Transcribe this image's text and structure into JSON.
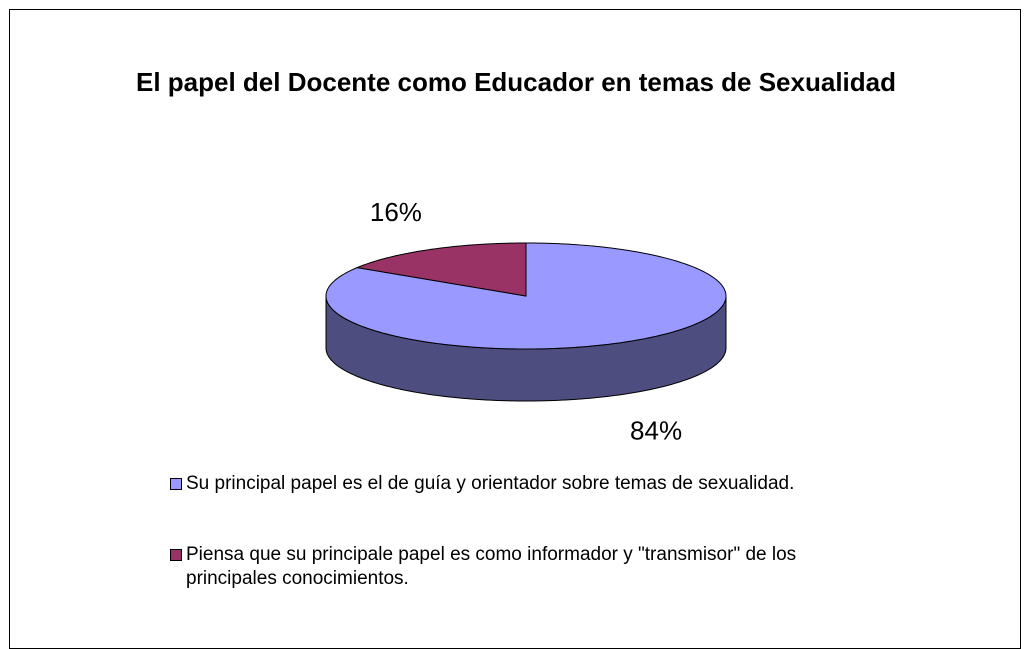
{
  "chart_data": {
    "type": "pie3d",
    "title": "El papel del Docente como Educador en temas de Sexualidad",
    "categories": [
      "Su principal papel es el de guía y orientador sobre temas de sexualidad.",
      "Piensa que su principale papel es como informador y \"transmisor\" de los principales conocimientos."
    ],
    "values": [
      84,
      16
    ],
    "value_labels": [
      "84%",
      "16%"
    ],
    "colors": [
      "#9999ff",
      "#993366"
    ],
    "legend": "bottom"
  }
}
